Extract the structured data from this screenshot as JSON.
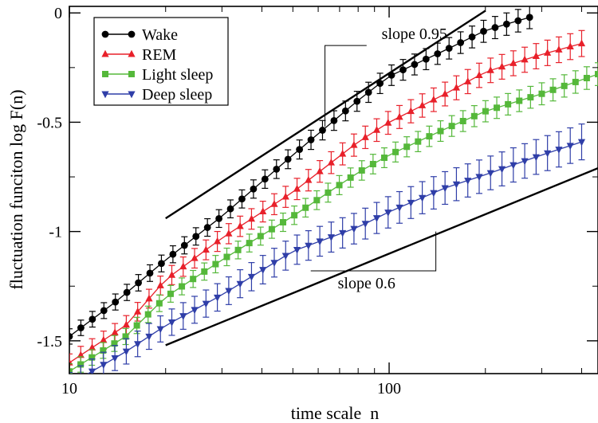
{
  "chart_data": {
    "type": "scatter",
    "title": "",
    "xlabel": "time scale  n",
    "ylabel": "fluctuation funciton log F(n)",
    "x_scale": "log",
    "xlim": [
      10,
      450
    ],
    "ylim": [
      -1.65,
      0.03
    ],
    "x_ticks": [
      {
        "value": 10,
        "label": "10"
      },
      {
        "value": 100,
        "label": "100"
      }
    ],
    "y_ticks": [
      {
        "value": 0,
        "label": "0"
      },
      {
        "value": -0.5,
        "label": "-0.5"
      },
      {
        "value": -1,
        "label": "-1"
      },
      {
        "value": -1.5,
        "label": "-1.5"
      }
    ],
    "grid": false,
    "legend_position": "top-left",
    "series": [
      {
        "name": "Wake",
        "color": "#000000",
        "marker": "circle",
        "x_range": [
          10,
          275
        ],
        "count": 41,
        "y_points": [
          [
            10,
            -1.48
          ],
          [
            14,
            -1.32
          ],
          [
            20,
            -1.13
          ],
          [
            30,
            -0.93
          ],
          [
            50,
            -0.65
          ],
          [
            80,
            -0.4
          ],
          [
            100,
            -0.29
          ],
          [
            150,
            -0.17
          ],
          [
            200,
            -0.08
          ],
          [
            275,
            -0.02
          ]
        ],
        "err": 0.035
      },
      {
        "name": "REM",
        "color": "#e8202a",
        "marker": "triangle-up",
        "x_range": [
          10,
          400
        ],
        "count": 46,
        "y_points": [
          [
            10,
            -1.6
          ],
          [
            15,
            -1.43
          ],
          [
            20,
            -1.22
          ],
          [
            30,
            -1.03
          ],
          [
            50,
            -0.82
          ],
          [
            80,
            -0.59
          ],
          [
            100,
            -0.5
          ],
          [
            150,
            -0.37
          ],
          [
            200,
            -0.27
          ],
          [
            300,
            -0.19
          ],
          [
            400,
            -0.14
          ]
        ],
        "err": 0.04
      },
      {
        "name": "Light sleep",
        "color": "#55b83a",
        "marker": "square",
        "x_range": [
          10,
          450
        ],
        "count": 48,
        "y_points": [
          [
            10,
            -1.64
          ],
          [
            15,
            -1.48
          ],
          [
            20,
            -1.3
          ],
          [
            30,
            -1.13
          ],
          [
            50,
            -0.93
          ],
          [
            80,
            -0.73
          ],
          [
            100,
            -0.65
          ],
          [
            150,
            -0.53
          ],
          [
            200,
            -0.45
          ],
          [
            300,
            -0.37
          ],
          [
            450,
            -0.28
          ]
        ],
        "err": 0.035
      },
      {
        "name": "Deep sleep",
        "color": "#2f3ea8",
        "marker": "triangle-down",
        "x_range": [
          10,
          400
        ],
        "count": 46,
        "y_points": [
          [
            10,
            -1.7
          ],
          [
            15,
            -1.55
          ],
          [
            20,
            -1.43
          ],
          [
            30,
            -1.29
          ],
          [
            50,
            -1.09
          ],
          [
            80,
            -0.98
          ],
          [
            100,
            -0.91
          ],
          [
            150,
            -0.8
          ],
          [
            200,
            -0.74
          ],
          [
            300,
            -0.65
          ],
          [
            400,
            -0.59
          ]
        ],
        "err": 0.055
      }
    ],
    "reference_lines": [
      {
        "label": "slope 0.95",
        "slope": 0.95,
        "from": [
          20,
          -0.94
        ],
        "to": [
          200,
          0.01
        ]
      },
      {
        "label": "slope 0.6",
        "slope": 0.6,
        "from": [
          20,
          -1.52
        ],
        "to": [
          450,
          -0.71
        ]
      }
    ],
    "annotations": [
      {
        "text": "slope 0.95",
        "x": 120,
        "y": -0.12,
        "pointer_x": 63,
        "pointer_y": -0.52
      },
      {
        "text": "slope 0.6",
        "x": 85,
        "y": -1.26,
        "pointer_x": 140,
        "pointer_y": -1.0
      }
    ]
  }
}
